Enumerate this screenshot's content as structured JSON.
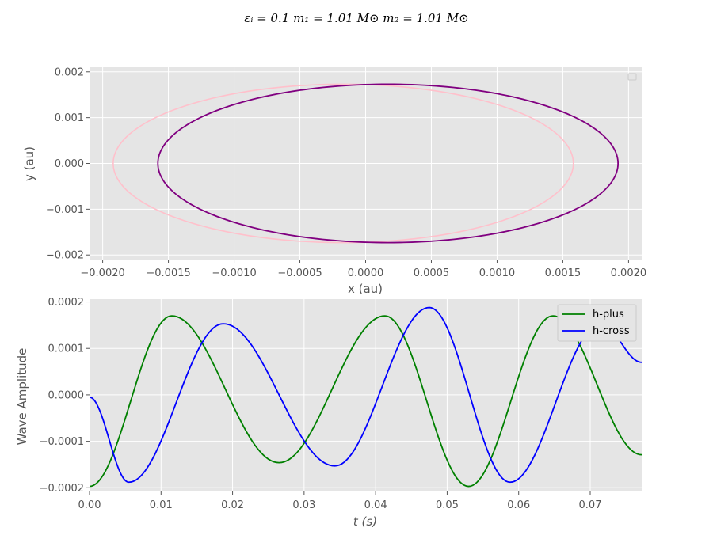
{
  "figure": {
    "suptitle": "εᵢ = 0.1 m₁ = 1.01 M⊙ m₂ = 1.01 M⊙"
  },
  "colors": {
    "panel_bg": "#e5e5e5",
    "grid": "#ffffff",
    "tick_text": "#555555",
    "orbit_1": "#ffc0cb",
    "orbit_2": "#800080",
    "h_plus": "#008000",
    "h_cross": "#0000ff"
  },
  "chart_data": [
    {
      "type": "line",
      "title": "",
      "xlabel": "x (au)",
      "ylabel": "y (au)",
      "xlim": [
        -0.0021,
        0.0021
      ],
      "ylim": [
        -0.0021,
        0.0021
      ],
      "xticks": [
        -0.002,
        -0.0015,
        -0.001,
        -0.0005,
        0.0,
        0.0005,
        0.001,
        0.0015,
        0.002
      ],
      "xtick_labels": [
        "−0.0020",
        "−0.0015",
        "−0.0010",
        "−0.0005",
        "0.0000",
        "0.0005",
        "0.0010",
        "0.0015",
        "0.0020"
      ],
      "yticks": [
        0.002,
        0.001,
        0.0,
        -0.001,
        -0.002
      ],
      "ytick_labels": [
        "0.002",
        "0.001",
        "0.000",
        "−0.001",
        "−0.002"
      ],
      "grid": true,
      "legend": "top-right (empty)",
      "series": [
        {
          "color": "#ffc0cb",
          "shape": "ellipse",
          "center_x": -0.00017,
          "center_y": 0.0,
          "semi_major_x": 0.00175,
          "semi_minor_y": 0.00173,
          "x_min": -0.00192,
          "x_max": 0.00158
        },
        {
          "color": "#800080",
          "shape": "ellipse",
          "center_x": 0.00017,
          "center_y": 0.0,
          "semi_major_x": 0.00175,
          "semi_minor_y": 0.00173,
          "x_min": -0.00158,
          "x_max": 0.00192
        }
      ]
    },
    {
      "type": "line",
      "title": "",
      "xlabel": "t (s)",
      "ylabel": "Wave Amplitude",
      "xlim": [
        0.0,
        0.0772
      ],
      "ylim": [
        -0.000208,
        0.000206
      ],
      "xticks": [
        0.0,
        0.01,
        0.02,
        0.03,
        0.04,
        0.05,
        0.06,
        0.07
      ],
      "xtick_labels": [
        "0.00",
        "0.01",
        "0.02",
        "0.03",
        "0.04",
        "0.05",
        "0.06",
        "0.07"
      ],
      "yticks": [
        0.0002,
        0.0001,
        0.0,
        -0.0001,
        -0.0002
      ],
      "ytick_labels": [
        "0.0002",
        "0.0001",
        "0.0000",
        "−0.0001",
        "−0.0002"
      ],
      "grid": true,
      "legend": "top-right",
      "series": [
        {
          "name": "h-plus",
          "color": "#008000",
          "x": [
            0.0,
            0.0115,
            0.0265,
            0.0413,
            0.053,
            0.0648,
            0.0772
          ],
          "y": [
            -0.000197,
            0.00017,
            -0.000146,
            0.00017,
            -0.000197,
            0.00017,
            -0.000129
          ]
        },
        {
          "name": "h-cross",
          "color": "#0000ff",
          "x": [
            0.0,
            0.0055,
            0.0187,
            0.0343,
            0.0475,
            0.0588,
            0.0715,
            0.0772
          ],
          "y": [
            -5e-06,
            -0.000188,
            0.000153,
            -0.000153,
            0.000188,
            -0.000188,
            0.000153,
            7e-05
          ]
        }
      ]
    }
  ]
}
